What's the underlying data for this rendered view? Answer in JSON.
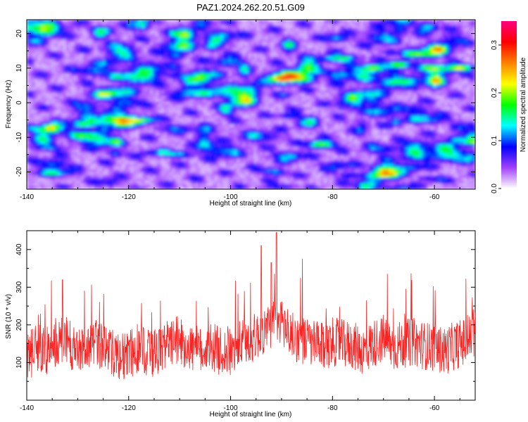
{
  "title": "PAZ1.2024.262.20.51.G09",
  "chart_data": [
    {
      "type": "heatmap",
      "xlabel": "Height of straight line (km)",
      "ylabel": "Frequency (Hz)",
      "xlim": [
        -140,
        -52
      ],
      "ylim": [
        -25,
        24
      ],
      "x_ticks": [
        "-140",
        "-120",
        "-100",
        "-80",
        "-60"
      ],
      "y_ticks": [
        "20",
        "10",
        "0",
        "-10",
        "-20"
      ],
      "colorbar": {
        "label": "Normalized spectral amplitude",
        "range": [
          0,
          0.35
        ],
        "ticks": [
          "0.0",
          "0.1",
          "0.2",
          "0.3"
        ],
        "colors": [
          "#ffffff",
          "#a040ff",
          "#0000ff",
          "#00ffff",
          "#00ff00",
          "#ffff00",
          "#ff8000",
          "#ff0000",
          "#ff0080"
        ]
      },
      "notes": "Amplitude mostly 0.02–0.1 (violet/blue); stronger patches near f≈10 Hz at heights −70 to −52 km (up to ~0.2)."
    },
    {
      "type": "line",
      "xlabel": "Height of straight line (km)",
      "ylabel": "SNR (10 * v/v)",
      "xlim": [
        -140,
        -52
      ],
      "ylim": [
        0,
        450
      ],
      "x_ticks": [
        "-140",
        "-120",
        "-100",
        "-80",
        "-60"
      ],
      "y_ticks": [
        "400",
        "300",
        "200",
        "100"
      ],
      "series": [
        {
          "color": "#ff2020",
          "x": [
            -140,
            -138,
            -136,
            -134,
            -132,
            -130,
            -128,
            -126,
            -124,
            -122,
            -120,
            -118,
            -116,
            -114,
            -112,
            -110,
            -108,
            -106,
            -104,
            -102,
            -100,
            -98,
            -96,
            -94,
            -92,
            -90,
            -88,
            -86,
            -84,
            -82,
            -80,
            -78,
            -76,
            -74,
            -72,
            -70,
            -68,
            -66,
            -64,
            -62,
            -60,
            -58,
            -56,
            -54,
            -52
          ],
          "y": [
            110,
            140,
            130,
            150,
            160,
            120,
            140,
            150,
            130,
            115,
            120,
            140,
            125,
            130,
            150,
            160,
            140,
            130,
            145,
            130,
            125,
            150,
            160,
            180,
            200,
            210,
            170,
            160,
            150,
            140,
            155,
            150,
            145,
            130,
            150,
            165,
            140,
            150,
            155,
            145,
            140,
            130,
            145,
            155,
            175
          ]
        }
      ],
      "peaks": [
        {
          "x": -133,
          "y": 320
        },
        {
          "x": -94,
          "y": 410
        },
        {
          "x": -91,
          "y": 445
        },
        {
          "x": -92,
          "y": 365
        }
      ]
    }
  ]
}
